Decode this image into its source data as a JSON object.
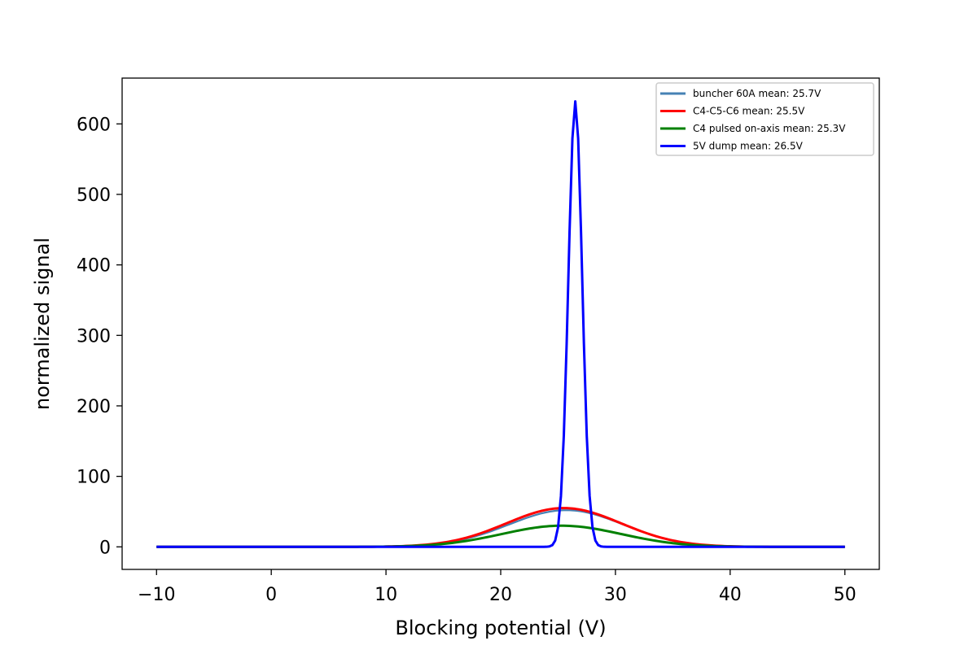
{
  "chart_data": {
    "type": "line",
    "title": "",
    "xlabel": "Blocking potential (V)",
    "ylabel": "normalized signal",
    "xlim": [
      -13,
      53
    ],
    "ylim": [
      -32,
      665
    ],
    "xticks": [
      -10,
      0,
      10,
      20,
      30,
      40,
      50
    ],
    "xtick_labels": [
      "−10",
      "0",
      "10",
      "20",
      "30",
      "40",
      "50"
    ],
    "yticks": [
      0,
      100,
      200,
      300,
      400,
      500,
      600
    ],
    "ytick_labels": [
      "0",
      "100",
      "200",
      "300",
      "400",
      "500",
      "600"
    ],
    "grid": false,
    "legend_position": "top-right",
    "x_range": [
      -10,
      50
    ],
    "x_step": 0.25,
    "series": [
      {
        "name": "buncher 60A mean: 25.7V",
        "color": "#4682b4",
        "shape": "gaussian",
        "amplitude": 52,
        "mean": 25.7,
        "sigma": 5.0
      },
      {
        "name": "C4-C5-C6 mean: 25.5V",
        "color": "#ff0000",
        "shape": "gaussian",
        "amplitude": 55,
        "mean": 25.5,
        "sigma": 5.0
      },
      {
        "name": "C4 pulsed on-axis mean: 25.3V",
        "color": "#008000",
        "shape": "gaussian",
        "amplitude": 30,
        "mean": 25.3,
        "sigma": 5.2
      },
      {
        "name": "5V dump mean: 26.5V",
        "color": "#0000ff",
        "shape": "gaussian",
        "amplitude": 632,
        "mean": 26.5,
        "sigma": 0.6
      }
    ]
  }
}
